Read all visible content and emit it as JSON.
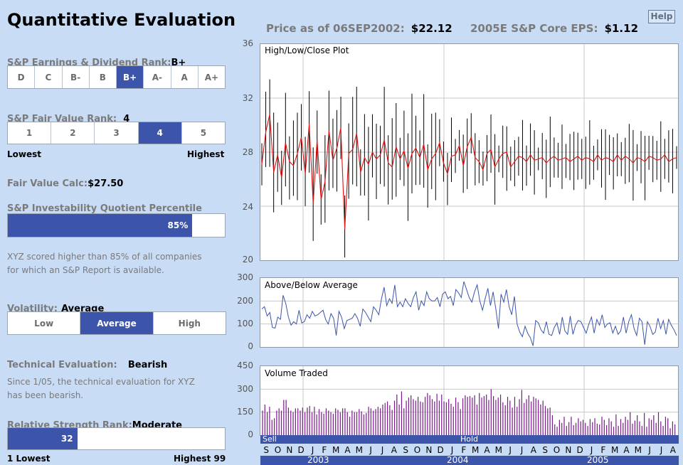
{
  "title": "Quantitative Evaluation",
  "help_label": "Help",
  "header": {
    "price_label": "Price as of",
    "price_date": "06SEP2002:",
    "price_value": "$22.12",
    "eps_label": "2005E S&P Core EPS:",
    "eps_value": "$1.12"
  },
  "earnings_rank": {
    "label": "S&P Earnings & Dividend Rank:",
    "value": "B+",
    "options": [
      "D",
      "C",
      "B-",
      "B",
      "B+",
      "A-",
      "A",
      "A+"
    ],
    "selected_index": 4
  },
  "fair_value_rank": {
    "label": "S&P Fair Value Rank:",
    "value": "4",
    "options": [
      "1",
      "2",
      "3",
      "4",
      "5"
    ],
    "selected_index": 3,
    "low_label": "Lowest",
    "high_label": "Highest"
  },
  "fair_value_calc": {
    "label": "Fair Value Calc:",
    "value": "$27.50"
  },
  "investability": {
    "label": "S&P Investability Quotient Percentile",
    "percent": 85,
    "percent_text": "85%",
    "note_line1": "XYZ scored higher than 85% of all companies",
    "note_line2": "for which an S&P Report is available."
  },
  "volatility": {
    "label": "Volatility:",
    "value": "Average",
    "options": [
      "Low",
      "Average",
      "High"
    ],
    "selected_index": 1
  },
  "technical": {
    "label": "Technical Evaluation:",
    "value": "Bearish",
    "note_line1": "Since 1/05, the technical evaluation for XYZ",
    "note_line2": "has been bearish."
  },
  "relative_strength": {
    "label": "Relative Strength Rank:",
    "value": "Moderate",
    "rank": 32,
    "rank_text": "32",
    "low_label": "1 Lowest",
    "high_label": "Highest 99"
  },
  "charts": {
    "hlc_title": "High/Low/Close Plot",
    "hlc_yticks": [
      "36",
      "32",
      "28",
      "24",
      "20"
    ],
    "avg_title": "Above/Below Average",
    "avg_yticks": [
      "300",
      "200",
      "100",
      "0"
    ],
    "vol_title": "Volume Traded",
    "vol_yticks": [
      "450",
      "300",
      "150",
      "0"
    ],
    "signal_sell": "Sell",
    "signal_hold": "Hold",
    "months": [
      "S",
      "O",
      "N",
      "D",
      "J",
      "F",
      "M",
      "A",
      "M",
      "J",
      "J",
      "A",
      "S",
      "O",
      "N",
      "D",
      "J",
      "F",
      "M",
      "A",
      "M",
      "J",
      "J",
      "A",
      "S",
      "O",
      "N",
      "D",
      "J",
      "F",
      "M",
      "A",
      "M",
      "J",
      "J",
      "A"
    ],
    "years": [
      "2003",
      "2004",
      "2005"
    ]
  },
  "chart_data": [
    {
      "type": "line",
      "title": "High/Low/Close Plot",
      "ylim": [
        20,
        36
      ],
      "yticks": [
        20,
        24,
        28,
        32,
        36
      ],
      "x_range": [
        "Sep 2002",
        "Aug 2005"
      ],
      "series": [
        {
          "values": [
            27.1,
            29.5,
            30.8,
            26.5,
            27.8,
            26.1,
            28.7,
            27.3,
            27.0,
            27.9,
            29.1,
            26.4,
            30.1,
            24.2,
            28.9,
            24.5,
            25.8,
            29.6,
            27.4,
            28.3,
            29.8,
            22.3,
            27.9,
            28.2,
            29.4,
            26.5,
            27.6,
            27.1,
            28.0,
            27.5,
            27.8,
            28.9,
            27.2,
            26.9,
            28.4,
            27.5,
            28.1,
            26.8,
            27.9,
            28.3,
            27.6,
            28.6,
            26.7,
            27.5,
            27.9,
            28.7,
            27.2,
            26.4,
            27.7,
            27.8,
            28.5,
            27.0,
            28.4,
            29.1,
            27.6,
            27.3,
            26.7,
            27.9,
            28.2,
            26.9,
            27.5,
            27.9,
            28.0,
            26.9,
            27.3,
            27.7,
            27.6,
            27.3,
            27.8,
            27.4,
            27.5,
            27.6,
            27.2,
            27.5,
            27.7,
            27.4,
            27.5,
            27.6,
            27.3,
            27.5,
            27.7,
            27.4,
            27.6,
            27.5,
            27.3,
            27.8,
            27.4,
            27.6,
            27.5,
            27.3,
            27.8,
            27.4,
            27.7,
            27.5,
            27.2,
            27.6,
            27.5,
            27.3,
            27.7,
            27.6,
            27.4,
            27.5,
            27.8,
            27.3,
            27.5,
            27.6
          ]
        }
      ]
    },
    {
      "type": "line",
      "title": "Above/Below Average",
      "ylim": [
        0,
        300
      ],
      "yticks": [
        0,
        100,
        200,
        300
      ],
      "x_range": [
        "Sep 2002",
        "Aug 2005"
      ],
      "series": [
        {
          "values": [
            165,
            175,
            135,
            150,
            85,
            82,
            130,
            120,
            225,
            190,
            130,
            95,
            110,
            100,
            160,
            105,
            110,
            140,
            125,
            155,
            135,
            140,
            150,
            160,
            120,
            100,
            145,
            125,
            50,
            155,
            130,
            80,
            115,
            120,
            125,
            145,
            125,
            90,
            165,
            150,
            130,
            110,
            175,
            160,
            140,
            210,
            260,
            180,
            210,
            190,
            270,
            175,
            195,
            175,
            210,
            190,
            175,
            215,
            240,
            160,
            200,
            180,
            240,
            210,
            200,
            200,
            215,
            175,
            230,
            240,
            210,
            220,
            180,
            250,
            235,
            215,
            285,
            250,
            215,
            195,
            240,
            270,
            200,
            160,
            210,
            255,
            180,
            240,
            165,
            80,
            230,
            195,
            250,
            175,
            140,
            220,
            100,
            65,
            45,
            90,
            60,
            40,
            5,
            115,
            105,
            75,
            60,
            110,
            55,
            50,
            85,
            105,
            55,
            130,
            70,
            55,
            135,
            55,
            95,
            115,
            110,
            85,
            60,
            100,
            130,
            60,
            120,
            95,
            140,
            85,
            100,
            105,
            60,
            90,
            55,
            70,
            130,
            60,
            110,
            140,
            80,
            50,
            125,
            110,
            10,
            110,
            90,
            55,
            65,
            125,
            80,
            115,
            55,
            120,
            95,
            75,
            50
          ]
        }
      ]
    },
    {
      "type": "bar",
      "title": "Volume Traded",
      "ylim": [
        0,
        450
      ],
      "yticks": [
        0,
        150,
        300,
        450
      ],
      "x_range": [
        "Sep 2002",
        "Aug 2005"
      ],
      "series": [
        {
          "values": [
            160,
            200,
            150,
            185,
            100,
            110,
            160,
            175,
            160,
            230,
            230,
            180,
            160,
            150,
            175,
            175,
            160,
            180,
            150,
            180,
            190,
            150,
            185,
            135,
            170,
            150,
            140,
            175,
            160,
            150,
            140,
            175,
            165,
            150,
            175,
            175,
            150,
            120,
            160,
            150,
            150,
            170,
            155,
            135,
            145,
            185,
            175,
            160,
            170,
            185,
            175,
            200,
            210,
            220,
            195,
            165,
            225,
            265,
            200,
            285,
            175,
            225,
            245,
            260,
            235,
            225,
            250,
            220,
            215,
            250,
            275,
            260,
            235,
            220,
            270,
            225,
            265,
            220,
            215,
            235,
            205,
            185,
            245,
            215,
            170,
            240,
            260,
            250,
            255,
            245,
            260,
            200,
            275,
            245,
            255,
            265,
            230,
            300,
            255,
            230,
            245,
            265,
            215,
            195,
            250,
            225,
            180,
            250,
            185,
            235,
            295,
            210,
            235,
            260,
            220,
            250,
            240,
            230,
            200,
            225,
            190,
            175,
            180,
            130,
            70,
            55,
            100,
            80,
            120,
            60,
            85,
            120,
            65,
            80,
            110,
            90,
            100,
            80,
            60,
            105,
            85,
            110,
            75,
            70,
            120,
            100,
            65,
            110,
            90,
            55,
            135,
            60,
            105,
            80,
            120,
            100,
            150,
            75,
            95,
            130,
            90,
            60,
            145,
            55,
            110,
            100,
            130,
            80,
            150,
            90,
            60,
            120,
            110,
            45,
            90,
            70
          ]
        }
      ]
    }
  ]
}
